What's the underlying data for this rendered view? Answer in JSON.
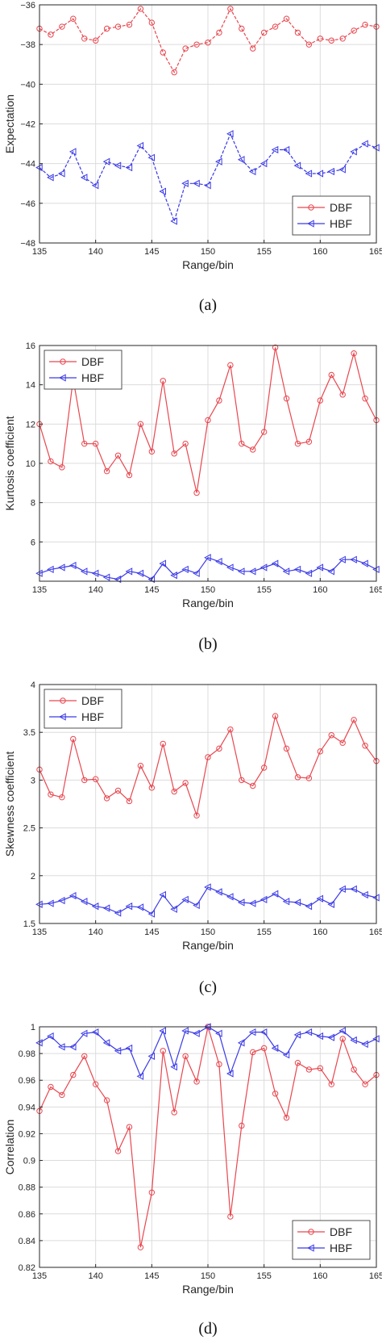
{
  "chart_data": [
    {
      "type": "line",
      "panel_label": "(a)",
      "xlabel": "Range/bin",
      "ylabel": "Expectation",
      "xlim": [
        135,
        165
      ],
      "ylim": [
        -48,
        -36
      ],
      "xticks": [
        135,
        140,
        145,
        150,
        155,
        160,
        165
      ],
      "yticks": [
        -48,
        -46,
        -44,
        -42,
        -40,
        -38,
        -36
      ],
      "grid": true,
      "line_style": "dashed",
      "legend_position": "bottom-right",
      "x": [
        135,
        136,
        137,
        138,
        139,
        140,
        141,
        142,
        143,
        144,
        145,
        146,
        147,
        148,
        149,
        150,
        151,
        152,
        153,
        154,
        155,
        156,
        157,
        158,
        159,
        160,
        161,
        162,
        163,
        164,
        165
      ],
      "series": [
        {
          "name": "DBF",
          "color": "#e8474f",
          "marker": "circle",
          "values": [
            -37.2,
            -37.5,
            -37.1,
            -36.7,
            -37.7,
            -37.8,
            -37.2,
            -37.1,
            -37.0,
            -36.2,
            -36.9,
            -38.4,
            -39.4,
            -38.2,
            -38.0,
            -37.9,
            -37.4,
            -36.2,
            -37.2,
            -38.2,
            -37.4,
            -37.1,
            -36.7,
            -37.4,
            -38.0,
            -37.7,
            -37.8,
            -37.7,
            -37.3,
            -37.0,
            -37.1
          ]
        },
        {
          "name": "HBF",
          "color": "#3a3ae8",
          "marker": "triangle-left",
          "values": [
            -44.2,
            -44.7,
            -44.5,
            -43.4,
            -44.7,
            -45.1,
            -43.9,
            -44.1,
            -44.2,
            -43.1,
            -43.7,
            -45.4,
            -46.9,
            -45.0,
            -45.0,
            -45.1,
            -43.9,
            -42.5,
            -43.8,
            -44.4,
            -44.0,
            -43.3,
            -43.3,
            -44.1,
            -44.5,
            -44.5,
            -44.4,
            -44.3,
            -43.4,
            -43.0,
            -43.2
          ]
        }
      ]
    },
    {
      "type": "line",
      "panel_label": "(b)",
      "xlabel": "Range/bin",
      "ylabel": "Kurtosis coefficient",
      "xlim": [
        135,
        165
      ],
      "ylim": [
        4,
        16
      ],
      "xticks": [
        135,
        140,
        145,
        150,
        155,
        160,
        165
      ],
      "yticks": [
        6,
        8,
        10,
        12,
        14,
        16
      ],
      "grid": true,
      "line_style": "solid",
      "legend_position": "top-left",
      "x": [
        135,
        136,
        137,
        138,
        139,
        140,
        141,
        142,
        143,
        144,
        145,
        146,
        147,
        148,
        149,
        150,
        151,
        152,
        153,
        154,
        155,
        156,
        157,
        158,
        159,
        160,
        161,
        162,
        163,
        164,
        165
      ],
      "series": [
        {
          "name": "DBF",
          "color": "#e8474f",
          "marker": "circle",
          "values": [
            12.0,
            10.1,
            9.8,
            14.3,
            11.0,
            11.0,
            9.6,
            10.4,
            9.4,
            12.0,
            10.6,
            14.2,
            10.5,
            11.0,
            8.5,
            12.2,
            13.2,
            15.0,
            11.0,
            10.7,
            11.6,
            15.9,
            13.3,
            11.0,
            11.1,
            13.2,
            14.5,
            13.5,
            15.6,
            13.3,
            12.2
          ]
        },
        {
          "name": "HBF",
          "color": "#3a3ae8",
          "marker": "triangle-left",
          "values": [
            4.4,
            4.6,
            4.7,
            4.8,
            4.5,
            4.4,
            4.2,
            4.1,
            4.5,
            4.4,
            4.1,
            4.9,
            4.3,
            4.6,
            4.4,
            5.2,
            5.0,
            4.7,
            4.5,
            4.5,
            4.7,
            4.9,
            4.5,
            4.6,
            4.4,
            4.7,
            4.5,
            5.1,
            5.1,
            4.9,
            4.6
          ]
        }
      ]
    },
    {
      "type": "line",
      "panel_label": "(c)",
      "xlabel": "Range/bin",
      "ylabel": "Skewness coefficient",
      "xlim": [
        135,
        165
      ],
      "ylim": [
        1.5,
        4
      ],
      "xticks": [
        135,
        140,
        145,
        150,
        155,
        160,
        165
      ],
      "yticks": [
        1.5,
        2,
        2.5,
        3,
        3.5,
        4
      ],
      "grid": true,
      "line_style": "solid",
      "legend_position": "top-left",
      "x": [
        135,
        136,
        137,
        138,
        139,
        140,
        141,
        142,
        143,
        144,
        145,
        146,
        147,
        148,
        149,
        150,
        151,
        152,
        153,
        154,
        155,
        156,
        157,
        158,
        159,
        160,
        161,
        162,
        163,
        164,
        165
      ],
      "series": [
        {
          "name": "DBF",
          "color": "#e8474f",
          "marker": "circle",
          "values": [
            3.11,
            2.85,
            2.82,
            3.43,
            3.0,
            3.01,
            2.81,
            2.89,
            2.78,
            3.15,
            2.92,
            3.38,
            2.88,
            2.97,
            2.63,
            3.24,
            3.33,
            3.53,
            3.0,
            2.94,
            3.13,
            3.67,
            3.33,
            3.03,
            3.02,
            3.3,
            3.47,
            3.39,
            3.63,
            3.36,
            3.2
          ]
        },
        {
          "name": "HBF",
          "color": "#3a3ae8",
          "marker": "triangle-left",
          "values": [
            1.7,
            1.71,
            1.74,
            1.79,
            1.73,
            1.68,
            1.66,
            1.61,
            1.68,
            1.67,
            1.6,
            1.8,
            1.65,
            1.75,
            1.69,
            1.88,
            1.83,
            1.78,
            1.72,
            1.71,
            1.75,
            1.81,
            1.73,
            1.72,
            1.68,
            1.76,
            1.7,
            1.86,
            1.86,
            1.8,
            1.77
          ]
        }
      ]
    },
    {
      "type": "line",
      "panel_label": "(d)",
      "xlabel": "Range/bin",
      "ylabel": "Correlation",
      "xlim": [
        135,
        165
      ],
      "ylim": [
        0.82,
        1
      ],
      "xticks": [
        135,
        140,
        145,
        150,
        155,
        160,
        165
      ],
      "yticks": [
        0.82,
        0.84,
        0.86,
        0.88,
        0.9,
        0.92,
        0.94,
        0.96,
        0.98,
        1
      ],
      "grid": true,
      "line_style": "solid",
      "legend_position": "bottom-right",
      "x": [
        135,
        136,
        137,
        138,
        139,
        140,
        141,
        142,
        143,
        144,
        145,
        146,
        147,
        148,
        149,
        150,
        151,
        152,
        153,
        154,
        155,
        156,
        157,
        158,
        159,
        160,
        161,
        162,
        163,
        164,
        165
      ],
      "series": [
        {
          "name": "DBF",
          "color": "#e8474f",
          "marker": "circle",
          "values": [
            0.937,
            0.955,
            0.949,
            0.964,
            0.978,
            0.957,
            0.945,
            0.907,
            0.925,
            0.835,
            0.876,
            0.982,
            0.936,
            0.978,
            0.959,
            1.0,
            0.972,
            0.858,
            0.926,
            0.981,
            0.984,
            0.95,
            0.932,
            0.973,
            0.968,
            0.969,
            0.957,
            0.991,
            0.968,
            0.957,
            0.964
          ]
        },
        {
          "name": "HBF",
          "color": "#3a3ae8",
          "marker": "triangle-left",
          "values": [
            0.988,
            0.993,
            0.985,
            0.985,
            0.995,
            0.996,
            0.988,
            0.982,
            0.984,
            0.963,
            0.978,
            0.997,
            0.97,
            0.997,
            0.995,
            1.0,
            0.995,
            0.965,
            0.988,
            0.996,
            0.996,
            0.984,
            0.979,
            0.994,
            0.996,
            0.993,
            0.992,
            0.997,
            0.99,
            0.987,
            0.991
          ]
        }
      ]
    }
  ]
}
